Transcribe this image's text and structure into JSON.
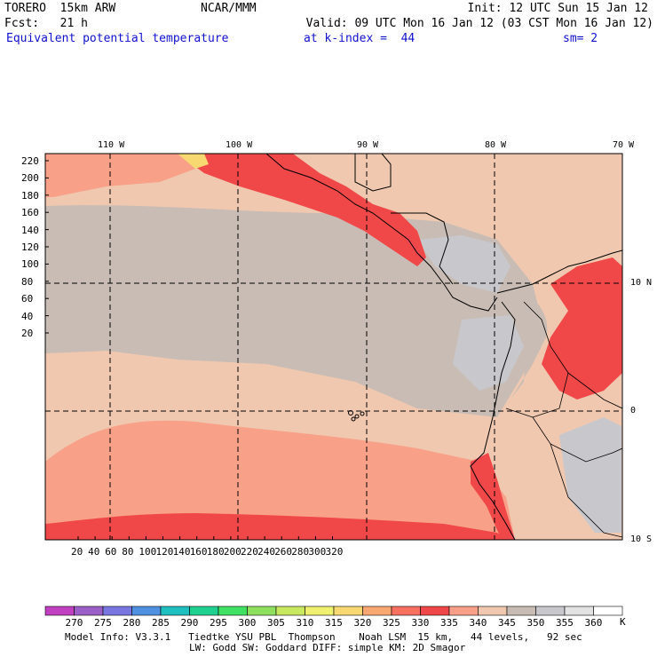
{
  "header": {
    "model": "TORERO  15km ARW",
    "org": "NCAR/MMM",
    "init": "Init: 12 UTC Sun 15 Jan 12",
    "fcst": "Fcst:   21 h",
    "valid": "Valid: 09 UTC Mon 16 Jan 12 (03 CST Mon 16 Jan 12)",
    "field": "Equivalent potential temperature",
    "level": "at k-index =  44",
    "smooth": "sm= 2"
  },
  "map": {
    "lon_labels": [
      "110 W",
      "100 W",
      "90 W",
      "80 W",
      "70 W"
    ],
    "lat_labels": [
      "10 N",
      "0",
      "10 S"
    ],
    "y_ticks": [
      "220",
      "200",
      "180",
      "160",
      "140",
      "120",
      "100",
      "80",
      "60",
      "40",
      "20"
    ],
    "x_ticks": [
      "20",
      "40",
      "60",
      "80",
      "100",
      "120",
      "140",
      "160",
      "180",
      "200",
      "220",
      "240",
      "260",
      "280",
      "300",
      "320"
    ]
  },
  "legend": {
    "labels": [
      "270",
      "275",
      "280",
      "285",
      "290",
      "295",
      "300",
      "305",
      "310",
      "315",
      "320",
      "325",
      "330",
      "335",
      "340",
      "345",
      "350",
      "355",
      "360"
    ],
    "unit": "K",
    "colors": [
      "#c040c0",
      "#9a60c8",
      "#7878e0",
      "#5090e0",
      "#20c0c0",
      "#20d090",
      "#40e060",
      "#90e060",
      "#c8e860",
      "#f0f070",
      "#f8d870",
      "#f8a870",
      "#f87060",
      "#f04848",
      "#f8a088",
      "#f0c8b0",
      "#c8bcb4",
      "#c8c8cc",
      "#e2e2e2",
      "#ffffff"
    ]
  },
  "footer": {
    "line1": "Model Info: V3.3.1   Tiedtke YSU PBL  Thompson    Noah LSM  15 km,   44 levels,   92 sec",
    "line2": "LW: Godd SW: Goddard DIFF: simple KM: 2D Smagor"
  }
}
